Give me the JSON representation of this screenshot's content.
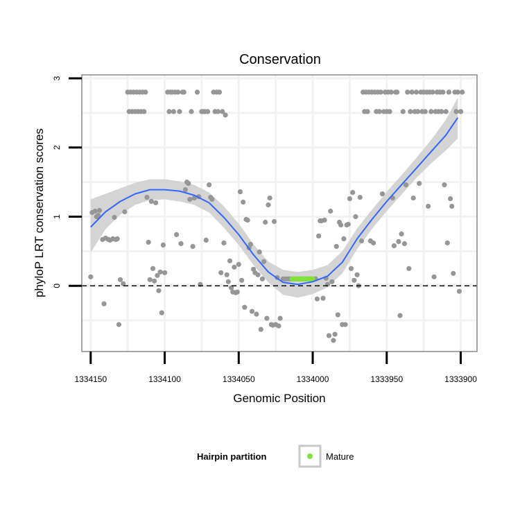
{
  "chart_data": {
    "type": "scatter",
    "title": "Conservation",
    "xlabel": "Genomic Position",
    "ylabel": "phyloP LRT conservation scores",
    "xlim": [
      1334156,
      1333889
    ],
    "x_reversed": true,
    "ylim": [
      -0.95,
      3.05
    ],
    "xticks": [
      1334150,
      1334100,
      1334050,
      1334000,
      1333950,
      1333900
    ],
    "xtick_labels": [
      "1334150",
      "1334100",
      "1334050",
      "1334000",
      "1333950",
      "1333900"
    ],
    "yticks": [
      0,
      1,
      2,
      3
    ],
    "ytick_labels": [
      "0",
      "1",
      "2",
      "3"
    ],
    "grid": true,
    "reference_line": {
      "y": 0,
      "style": "dashed"
    },
    "colors": {
      "points": "#969696",
      "mature": "#7FE33A",
      "smooth": "#3366FF",
      "ribbon": "#d4d4d4",
      "panel_border": "#888888",
      "grid": "#f2f2f2"
    },
    "series": [
      {
        "name": "Conservation",
        "points": [
          [
            1334150,
            0.13
          ],
          [
            1334149,
            1.06
          ],
          [
            1334147,
            1.08
          ],
          [
            1334146,
            1.0
          ],
          [
            1334145,
            1.02
          ],
          [
            1334144,
            1.09
          ],
          [
            1334142,
            0.67
          ],
          [
            1334141,
            -0.26
          ],
          [
            1334140,
            0.69
          ],
          [
            1334138,
            0.67
          ],
          [
            1334137,
            0.66
          ],
          [
            1334135,
            0.68
          ],
          [
            1334134,
            0.99
          ],
          [
            1334133,
            0.67
          ],
          [
            1334132,
            0.68
          ],
          [
            1334131,
            -0.56
          ],
          [
            1334130,
            0.09
          ],
          [
            1334128,
            0.03
          ],
          [
            1334127,
            1.07
          ],
          [
            1334125,
            2.8
          ],
          [
            1334124,
            2.52
          ],
          [
            1334123,
            2.8
          ],
          [
            1334122,
            2.52
          ],
          [
            1334121,
            2.8
          ],
          [
            1334120,
            2.52
          ],
          [
            1334119,
            2.8
          ],
          [
            1334118,
            2.52
          ],
          [
            1334117,
            2.8
          ],
          [
            1334116,
            2.52
          ],
          [
            1334115,
            2.8
          ],
          [
            1334114,
            2.52
          ],
          [
            1334113,
            2.8
          ],
          [
            1334112,
            1.28
          ],
          [
            1334111,
            0.63
          ],
          [
            1334110,
            0.09
          ],
          [
            1334109,
            1.22
          ],
          [
            1334108,
            0.25
          ],
          [
            1334107,
            0.07
          ],
          [
            1334106,
            1.2
          ],
          [
            1334105,
            0.15
          ],
          [
            1334104,
            -0.07
          ],
          [
            1334103,
            0.2
          ],
          [
            1334102,
            -0.39
          ],
          [
            1334101,
            0.59
          ],
          [
            1334100,
            0.19
          ],
          [
            1334098,
            2.8
          ],
          [
            1334097,
            2.52
          ],
          [
            1334096,
            2.8
          ],
          [
            1334095,
            2.8
          ],
          [
            1334094,
            2.52
          ],
          [
            1334093,
            2.8
          ],
          [
            1334092,
            0.74
          ],
          [
            1334091,
            2.8
          ],
          [
            1334090,
            2.52
          ],
          [
            1334089,
            0.61
          ],
          [
            1334088,
            2.8
          ],
          [
            1334087,
            2.8
          ],
          [
            1334086,
            1.39
          ],
          [
            1334085,
            1.5
          ],
          [
            1334084,
            1.48
          ],
          [
            1334083,
            1.25
          ],
          [
            1334082,
            2.52
          ],
          [
            1334081,
            0.57
          ],
          [
            1334080,
            1.27
          ],
          [
            1334078,
            2.8
          ],
          [
            1334077,
            1.29
          ],
          [
            1334076,
            0.02
          ],
          [
            1334075,
            2.52
          ],
          [
            1334074,
            2.52
          ],
          [
            1334073,
            2.52
          ],
          [
            1334072,
            0.66
          ],
          [
            1334071,
            2.52
          ],
          [
            1334070,
            1.46
          ],
          [
            1334069,
            1.28
          ],
          [
            1334068,
            1.25
          ],
          [
            1334067,
            2.8
          ],
          [
            1334066,
            2.52
          ],
          [
            1334065,
            2.8
          ],
          [
            1334064,
            2.52
          ],
          [
            1334063,
            2.8
          ],
          [
            1334062,
            0.19
          ],
          [
            1334061,
            2.52
          ],
          [
            1334060,
            0.62
          ],
          [
            1334059,
            2.47
          ],
          [
            1334058,
            0.16
          ],
          [
            1334057,
            0.06
          ],
          [
            1334056,
            0.36
          ],
          [
            1334055,
            -0.03
          ],
          [
            1334054,
            -0.09
          ],
          [
            1334053,
            0.27
          ],
          [
            1334052,
            -0.1
          ],
          [
            1334051,
            -0.09
          ],
          [
            1334050,
            0.31
          ],
          [
            1334049,
            1.36
          ],
          [
            1334048,
            0.08
          ],
          [
            1334047,
            1.21
          ],
          [
            1334046,
            -0.31
          ],
          [
            1334045,
            0.96
          ],
          [
            1334044,
            0.95
          ],
          [
            1334043,
            0.55
          ],
          [
            1334042,
            0.6
          ],
          [
            1334041,
            -0.37
          ],
          [
            1334040,
            0.24
          ],
          [
            1334039,
            0.19
          ],
          [
            1334038,
            -0.41
          ],
          [
            1334037,
            0.16
          ],
          [
            1334036,
            0.49
          ],
          [
            1334035,
            -0.63
          ],
          [
            1334034,
            0.1
          ],
          [
            1334033,
            0.35
          ],
          [
            1334032,
            0.92
          ],
          [
            1334031,
            -0.47
          ],
          [
            1334030,
            1.17
          ],
          [
            1334029,
            1.27
          ],
          [
            1334028,
            -0.56
          ],
          [
            1334027,
            -0.57
          ],
          [
            1334026,
            0.93
          ],
          [
            1334025,
            -0.56
          ],
          [
            1334024,
            0.12
          ],
          [
            1334023,
            -0.58
          ],
          [
            1334022,
            -0.47
          ],
          [
            1334020,
            0.1
          ],
          [
            1334019,
            0.1
          ],
          [
            1334018,
            0.1
          ],
          [
            1334017,
            0.1
          ],
          [
            1334016,
            0.1
          ],
          [
            1334015,
            0.1
          ],
          [
            1334014,
            0.1
          ],
          [
            1334013,
            0.1
          ],
          [
            1334012,
            0.1
          ],
          [
            1334011,
            0.1
          ],
          [
            1334010,
            0.1
          ],
          [
            1334009,
            0.1
          ],
          [
            1334008,
            0.1
          ],
          [
            1334007,
            0.1
          ],
          [
            1334006,
            0.1
          ],
          [
            1334005,
            0.1
          ],
          [
            1334004,
            0.1
          ],
          [
            1334003,
            0.1
          ],
          [
            1334002,
            0.1
          ],
          [
            1334001,
            0.1
          ],
          [
            1334000,
            0.1
          ],
          [
            1333999,
            0.1
          ],
          [
            1333998,
            0.1
          ],
          [
            1333997,
            -0.19
          ],
          [
            1333996,
            0.72
          ],
          [
            1333995,
            0.94
          ],
          [
            1333994,
            0.94
          ],
          [
            1333993,
            -0.18
          ],
          [
            1333992,
            0.95
          ],
          [
            1333991,
            0.11
          ],
          [
            1333990,
            0.02
          ],
          [
            1333989,
            -0.72
          ],
          [
            1333988,
            1.08
          ],
          [
            1333987,
            0.06
          ],
          [
            1333986,
            -0.79
          ],
          [
            1333985,
            -0.7
          ],
          [
            1333984,
            0.57
          ],
          [
            1333983,
            -0.42
          ],
          [
            1333982,
            0.92
          ],
          [
            1333981,
            0.88
          ],
          [
            1333980,
            -0.56
          ],
          [
            1333979,
            0.68
          ],
          [
            1333978,
            -0.56
          ],
          [
            1333977,
            0.88
          ],
          [
            1333976,
            0.89
          ],
          [
            1333975,
            1.26
          ],
          [
            1333974,
            0.25
          ],
          [
            1333973,
            1.35
          ],
          [
            1333972,
            0.08
          ],
          [
            1333971,
            1.0
          ],
          [
            1333970,
            0.16
          ],
          [
            1333969,
            0.0
          ],
          [
            1333968,
            1.28
          ],
          [
            1333967,
            0.65
          ],
          [
            1333966,
            2.8
          ],
          [
            1333965,
            2.52
          ],
          [
            1333964,
            2.8
          ],
          [
            1333963,
            2.52
          ],
          [
            1333962,
            2.8
          ],
          [
            1333961,
            0.65
          ],
          [
            1333960,
            2.8
          ],
          [
            1333959,
            0.62
          ],
          [
            1333958,
            2.8
          ],
          [
            1333957,
            2.52
          ],
          [
            1333956,
            2.8
          ],
          [
            1333955,
            2.52
          ],
          [
            1333954,
            2.8
          ],
          [
            1333953,
            1.33
          ],
          [
            1333952,
            2.52
          ],
          [
            1333951,
            2.8
          ],
          [
            1333950,
            2.52
          ],
          [
            1333949,
            2.8
          ],
          [
            1333948,
            2.52
          ],
          [
            1333947,
            2.8
          ],
          [
            1333946,
            1.27
          ],
          [
            1333945,
            0.58
          ],
          [
            1333944,
            2.8
          ],
          [
            1333943,
            2.8
          ],
          [
            1333942,
            0.64
          ],
          [
            1333941,
            -0.43
          ],
          [
            1333940,
            0.75
          ],
          [
            1333939,
            2.52
          ],
          [
            1333938,
            0.61
          ],
          [
            1333937,
            1.46
          ],
          [
            1333936,
            2.8
          ],
          [
            1333935,
            0.25
          ],
          [
            1333934,
            2.52
          ],
          [
            1333933,
            2.8
          ],
          [
            1333932,
            1.27
          ],
          [
            1333931,
            2.52
          ],
          [
            1333930,
            2.8
          ],
          [
            1333929,
            2.52
          ],
          [
            1333928,
            1.48
          ],
          [
            1333927,
            2.8
          ],
          [
            1333926,
            2.52
          ],
          [
            1333925,
            2.8
          ],
          [
            1333924,
            2.52
          ],
          [
            1333923,
            2.8
          ],
          [
            1333922,
            1.15
          ],
          [
            1333921,
            2.8
          ],
          [
            1333920,
            2.52
          ],
          [
            1333919,
            2.8
          ],
          [
            1333918,
            0.13
          ],
          [
            1333917,
            2.52
          ],
          [
            1333916,
            2.8
          ],
          [
            1333915,
            2.52
          ],
          [
            1333914,
            2.8
          ],
          [
            1333913,
            2.52
          ],
          [
            1333912,
            2.8
          ],
          [
            1333911,
            1.46
          ],
          [
            1333910,
            2.52
          ],
          [
            1333909,
            0.62
          ],
          [
            1333908,
            2.8
          ],
          [
            1333907,
            1.26
          ],
          [
            1333906,
            1.15
          ],
          [
            1333905,
            0.18
          ],
          [
            1333904,
            2.8
          ],
          [
            1333903,
            2.52
          ],
          [
            1333902,
            2.8
          ],
          [
            1333901,
            -0.08
          ],
          [
            1333900,
            2.52
          ],
          [
            1333899,
            2.8
          ]
        ]
      },
      {
        "name": "Mature",
        "points": [
          [
            1334014,
            0.1
          ],
          [
            1334013,
            0.1
          ],
          [
            1334012,
            0.1
          ],
          [
            1334011,
            0.1
          ],
          [
            1334010,
            0.1
          ],
          [
            1334009,
            0.1
          ],
          [
            1334008,
            0.1
          ],
          [
            1334007,
            0.1
          ],
          [
            1334006,
            0.1
          ],
          [
            1334005,
            0.1
          ],
          [
            1334004,
            0.1
          ],
          [
            1334003,
            0.1
          ],
          [
            1334002,
            0.1
          ],
          [
            1334001,
            0.1
          ],
          [
            1334000,
            0.1
          ]
        ]
      }
    ],
    "smooth": [
      {
        "x": 1334150,
        "y": 0.85,
        "lo": 0.48,
        "hi": 1.25
      },
      {
        "x": 1334140,
        "y": 1.07,
        "lo": 0.82,
        "hi": 1.33
      },
      {
        "x": 1334130,
        "y": 1.22,
        "lo": 1.03,
        "hi": 1.41
      },
      {
        "x": 1334120,
        "y": 1.33,
        "lo": 1.17,
        "hi": 1.49
      },
      {
        "x": 1334110,
        "y": 1.39,
        "lo": 1.24,
        "hi": 1.54
      },
      {
        "x": 1334100,
        "y": 1.39,
        "lo": 1.25,
        "hi": 1.54
      },
      {
        "x": 1334090,
        "y": 1.37,
        "lo": 1.22,
        "hi": 1.51
      },
      {
        "x": 1334080,
        "y": 1.31,
        "lo": 1.17,
        "hi": 1.46
      },
      {
        "x": 1334070,
        "y": 1.2,
        "lo": 1.06,
        "hi": 1.35
      },
      {
        "x": 1334060,
        "y": 0.99,
        "lo": 0.84,
        "hi": 1.15
      },
      {
        "x": 1334050,
        "y": 0.74,
        "lo": 0.59,
        "hi": 0.9
      },
      {
        "x": 1334040,
        "y": 0.45,
        "lo": 0.3,
        "hi": 0.6
      },
      {
        "x": 1334030,
        "y": 0.2,
        "lo": 0.05,
        "hi": 0.35
      },
      {
        "x": 1334020,
        "y": 0.05,
        "lo": -0.13,
        "hi": 0.23
      },
      {
        "x": 1334010,
        "y": 0.02,
        "lo": -0.17,
        "hi": 0.2
      },
      {
        "x": 1334000,
        "y": 0.06,
        "lo": -0.12,
        "hi": 0.23
      },
      {
        "x": 1333990,
        "y": 0.14,
        "lo": -0.02,
        "hi": 0.3
      },
      {
        "x": 1333980,
        "y": 0.34,
        "lo": 0.18,
        "hi": 0.5
      },
      {
        "x": 1333970,
        "y": 0.68,
        "lo": 0.53,
        "hi": 0.83
      },
      {
        "x": 1333960,
        "y": 0.96,
        "lo": 0.82,
        "hi": 1.1
      },
      {
        "x": 1333950,
        "y": 1.22,
        "lo": 1.08,
        "hi": 1.36
      },
      {
        "x": 1333940,
        "y": 1.46,
        "lo": 1.32,
        "hi": 1.6
      },
      {
        "x": 1333930,
        "y": 1.7,
        "lo": 1.56,
        "hi": 1.85
      },
      {
        "x": 1333920,
        "y": 1.94,
        "lo": 1.77,
        "hi": 2.11
      },
      {
        "x": 1333910,
        "y": 2.18,
        "lo": 1.96,
        "hi": 2.4
      },
      {
        "x": 1333902,
        "y": 2.43,
        "lo": 2.13,
        "hi": 2.72
      }
    ]
  },
  "legend": {
    "title": "Hairpin partition",
    "items": [
      {
        "label": "Mature",
        "color": "#7FE33A"
      }
    ]
  }
}
